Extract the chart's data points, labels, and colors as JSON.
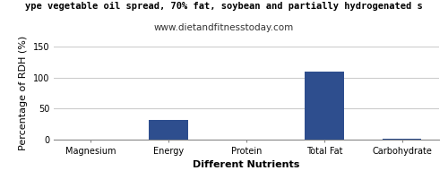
{
  "title_line1": "ype vegetable oil spread, 70% fat, soybean and partially hydrogenated s",
  "title_line2": "www.dietandfitnesstoday.com",
  "xlabel": "Different Nutrients",
  "ylabel": "Percentage of RDH (%)",
  "categories": [
    "Magnesium",
    "Energy",
    "Protein",
    "Total Fat",
    "Carbohydrate"
  ],
  "values": [
    0.5,
    32,
    0.3,
    110,
    1.0
  ],
  "bar_color": "#2e4e8e",
  "ylim": [
    0,
    150
  ],
  "yticks": [
    0,
    50,
    100,
    150
  ],
  "background_color": "#ffffff",
  "grid_color": "#cccccc",
  "title_fontsize": 7.5,
  "subtitle_fontsize": 7.5,
  "axis_label_fontsize": 8,
  "tick_fontsize": 7,
  "bar_width": 0.5
}
